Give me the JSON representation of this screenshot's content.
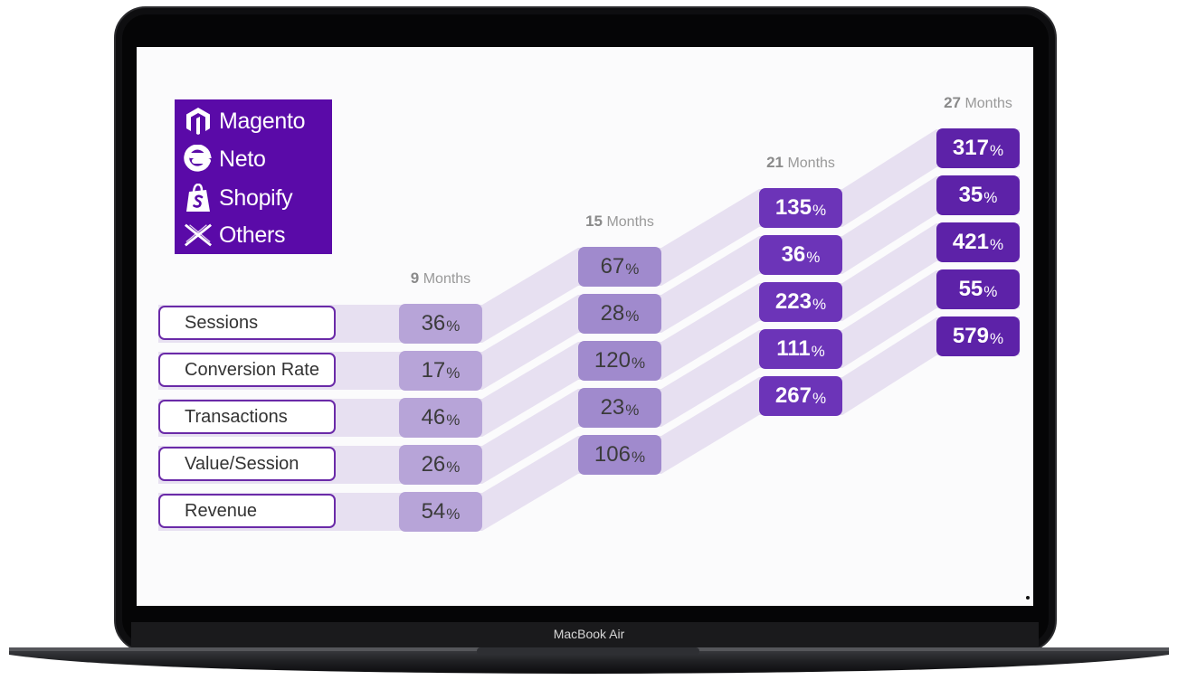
{
  "platforms": [
    {
      "name": "Magento",
      "icon": "magento-icon"
    },
    {
      "name": "Neto",
      "icon": "neto-icon"
    },
    {
      "name": "Shopify",
      "icon": "shopify-icon"
    },
    {
      "name": "Others",
      "icon": "others-x-icon"
    }
  ],
  "device_label": "MacBook Air",
  "colors": {
    "brand_purple": "#5a0aa8",
    "ribbon": "#e6def0",
    "col_9": "#b7a4d8",
    "col_15": "#a08acd",
    "col_21": "#6c34b8",
    "col_27": "#5d22a8"
  },
  "chart_data": {
    "type": "table",
    "title": "",
    "metrics": [
      "Sessions",
      "Conversion Rate",
      "Transactions",
      "Value/Session",
      "Revenue"
    ],
    "unit_suffix": "%",
    "columns": [
      {
        "num": "9",
        "unit": "Months",
        "values": [
          36,
          17,
          46,
          26,
          54
        ]
      },
      {
        "num": "15",
        "unit": "Months",
        "values": [
          67,
          28,
          120,
          23,
          106
        ]
      },
      {
        "num": "21",
        "unit": "Months",
        "values": [
          135,
          36,
          223,
          111,
          267
        ]
      },
      {
        "num": "27",
        "unit": "Months",
        "values": [
          317,
          35,
          421,
          55,
          579
        ]
      }
    ]
  }
}
